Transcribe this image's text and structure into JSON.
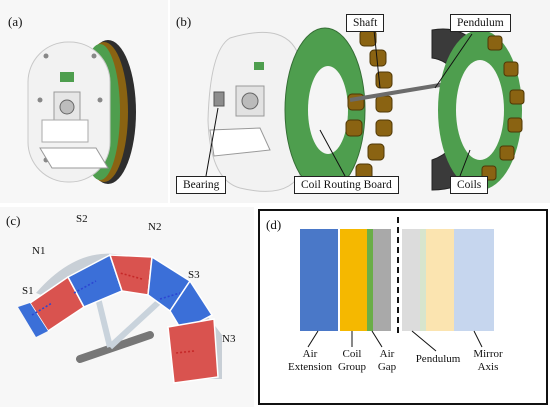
{
  "panels": {
    "a": {
      "label": "(a)"
    },
    "b": {
      "label": "(b)",
      "callouts": {
        "shaft": "Shaft",
        "pendulum": "Pendulum",
        "bearing": "Bearing",
        "coil_routing_board": "Coil Routing Board",
        "coils": "Coils"
      }
    },
    "c": {
      "label": "(c)",
      "poles": {
        "s1": "S1",
        "n1": "N1",
        "s2": "S2",
        "n2": "N2",
        "s3": "S3",
        "n3": "N3"
      }
    },
    "d": {
      "label": "(d)",
      "legend": {
        "air_extension": [
          "Air",
          "Extension"
        ],
        "coil_group": [
          "Coil",
          "Group"
        ],
        "air_gap": [
          "Air",
          "Gap"
        ],
        "pendulum": "Pendulum",
        "mirror_axis": [
          "Mirror",
          "Axis"
        ]
      },
      "layer_colors": {
        "air_extension": "#4a78c8",
        "coil_group": "#f5b800",
        "green_thin": "#6aae48",
        "air_gap": "#a9a9a9",
        "mirror_1": "#dcdcdc",
        "mirror_2": "#d7e5cd",
        "mirror_3": "#fbe4b0",
        "mirror_4": "#c6d6ee"
      }
    }
  },
  "colors": {
    "magnet_red": "#d9534f",
    "magnet_blue": "#3b6fd8",
    "coil_brown": "#8a6312",
    "board_green": "#4e9e4e",
    "frame_white": "#f2f2f2"
  }
}
